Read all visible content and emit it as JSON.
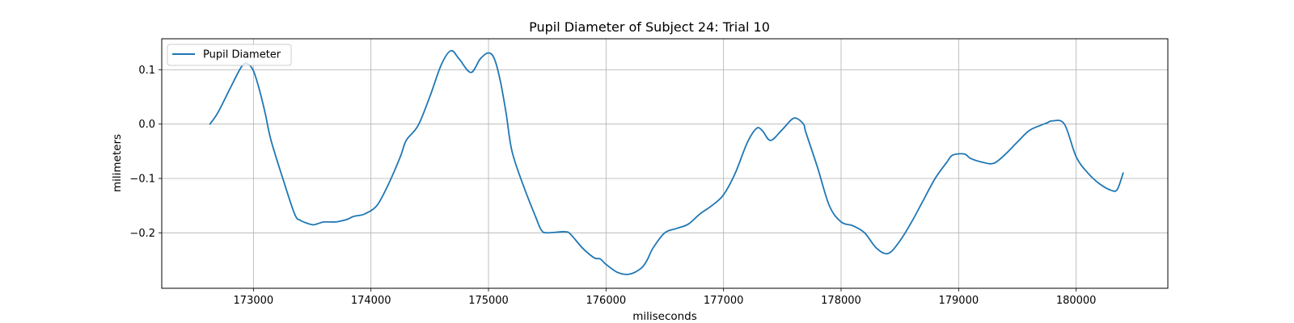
{
  "chart_data": {
    "type": "line",
    "title": "Pupil Diameter of Subject 24: Trial 10",
    "xlabel": "miliseconds",
    "ylabel": "milimeters",
    "xlim": [
      172220,
      180780
    ],
    "ylim": [
      -0.302,
      0.157
    ],
    "xticks": [
      173000,
      174000,
      175000,
      176000,
      177000,
      178000,
      179000,
      180000
    ],
    "xtick_labels": [
      "173000",
      "174000",
      "175000",
      "176000",
      "177000",
      "178000",
      "179000",
      "180000"
    ],
    "yticks": [
      -0.2,
      -0.1,
      0.0,
      0.1
    ],
    "ytick_labels": [
      "−0.2",
      "−0.1",
      "0.0",
      "0.1"
    ],
    "grid": true,
    "legend_position": "upper-left",
    "series": [
      {
        "name": "Pupil Diameter",
        "color": "#1f77b4",
        "points": [
          [
            172630,
            0.0
          ],
          [
            172700,
            0.022
          ],
          [
            172800,
            0.065
          ],
          [
            172900,
            0.106
          ],
          [
            172950,
            0.111
          ],
          [
            173000,
            0.098
          ],
          [
            173050,
            0.064
          ],
          [
            173100,
            0.02
          ],
          [
            173150,
            -0.03
          ],
          [
            173250,
            -0.1
          ],
          [
            173350,
            -0.165
          ],
          [
            173400,
            -0.177
          ],
          [
            173500,
            -0.185
          ],
          [
            173550,
            -0.183
          ],
          [
            173600,
            -0.18
          ],
          [
            173700,
            -0.18
          ],
          [
            173750,
            -0.178
          ],
          [
            173800,
            -0.175
          ],
          [
            173850,
            -0.17
          ],
          [
            173900,
            -0.168
          ],
          [
            173950,
            -0.165
          ],
          [
            174050,
            -0.15
          ],
          [
            174150,
            -0.11
          ],
          [
            174250,
            -0.06
          ],
          [
            174300,
            -0.03
          ],
          [
            174400,
            -0.003
          ],
          [
            174500,
            0.05
          ],
          [
            174600,
            0.11
          ],
          [
            174680,
            0.135
          ],
          [
            174750,
            0.12
          ],
          [
            174850,
            0.095
          ],
          [
            174930,
            0.12
          ],
          [
            175000,
            0.131
          ],
          [
            175050,
            0.12
          ],
          [
            175100,
            0.08
          ],
          [
            175150,
            0.02
          ],
          [
            175200,
            -0.05
          ],
          [
            175300,
            -0.115
          ],
          [
            175400,
            -0.17
          ],
          [
            175450,
            -0.195
          ],
          [
            175500,
            -0.2
          ],
          [
            175650,
            -0.198
          ],
          [
            175700,
            -0.203
          ],
          [
            175800,
            -0.228
          ],
          [
            175900,
            -0.246
          ],
          [
            175950,
            -0.248
          ],
          [
            176000,
            -0.258
          ],
          [
            176100,
            -0.273
          ],
          [
            176200,
            -0.276
          ],
          [
            176300,
            -0.265
          ],
          [
            176350,
            -0.25
          ],
          [
            176400,
            -0.228
          ],
          [
            176500,
            -0.2
          ],
          [
            176600,
            -0.192
          ],
          [
            176700,
            -0.184
          ],
          [
            176800,
            -0.165
          ],
          [
            176900,
            -0.15
          ],
          [
            177000,
            -0.13
          ],
          [
            177100,
            -0.09
          ],
          [
            177200,
            -0.035
          ],
          [
            177280,
            -0.008
          ],
          [
            177330,
            -0.012
          ],
          [
            177400,
            -0.03
          ],
          [
            177500,
            -0.01
          ],
          [
            177600,
            0.011
          ],
          [
            177680,
            0.0
          ],
          [
            177700,
            -0.015
          ],
          [
            177800,
            -0.08
          ],
          [
            177900,
            -0.15
          ],
          [
            178000,
            -0.18
          ],
          [
            178100,
            -0.187
          ],
          [
            178200,
            -0.2
          ],
          [
            178300,
            -0.228
          ],
          [
            178400,
            -0.238
          ],
          [
            178500,
            -0.215
          ],
          [
            178600,
            -0.18
          ],
          [
            178700,
            -0.14
          ],
          [
            178800,
            -0.1
          ],
          [
            178900,
            -0.07
          ],
          [
            178950,
            -0.057
          ],
          [
            179050,
            -0.055
          ],
          [
            179100,
            -0.063
          ],
          [
            179200,
            -0.07
          ],
          [
            179300,
            -0.072
          ],
          [
            179400,
            -0.055
          ],
          [
            179500,
            -0.033
          ],
          [
            179600,
            -0.012
          ],
          [
            179700,
            -0.002
          ],
          [
            179750,
            0.002
          ],
          [
            179800,
            0.006
          ],
          [
            179900,
            0.0
          ],
          [
            180000,
            -0.06
          ],
          [
            180100,
            -0.09
          ],
          [
            180200,
            -0.11
          ],
          [
            180300,
            -0.122
          ],
          [
            180350,
            -0.12
          ],
          [
            180400,
            -0.09
          ]
        ]
      }
    ]
  }
}
